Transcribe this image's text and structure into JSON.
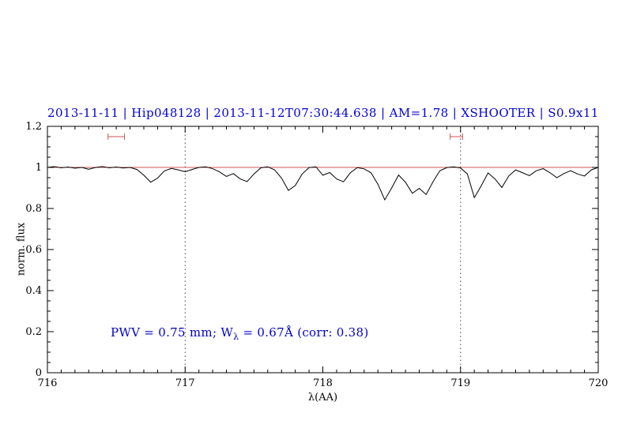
{
  "title": {
    "text": "2013-11-11 | Hip048128 | 2013-11-12T07:30:44.638 | AM=1.78 | XSHOOTER | S0.9x11",
    "color": "#0000dd"
  },
  "annotation": {
    "pre": "PWV = 0.75 mm; W",
    "sub": "λ",
    "post": " = 0.67Å (corr: 0.38)",
    "color": "#0000cc"
  },
  "chart_data": {
    "type": "line",
    "title": "2013-11-11 | Hip048128 | 2013-11-12T07:30:44.638 | AM=1.78 | XSHOOTER | S0.9x11",
    "xlabel": "λ(AA)",
    "ylabel": "norm. flux",
    "xlim": [
      716,
      720
    ],
    "ylim": [
      0,
      1.2
    ],
    "grid": false,
    "xticks": [
      716,
      717,
      718,
      719,
      720
    ],
    "xtick_labels": [
      "716",
      "717",
      "718",
      "719",
      "720"
    ],
    "x_minor_step": 0.1,
    "yticks": [
      0,
      0.2,
      0.4,
      0.6,
      0.8,
      1,
      1.2
    ],
    "ytick_labels": [
      "0",
      "0.2",
      "0.4",
      "0.6",
      "0.8",
      "1",
      "1.2"
    ],
    "y_minor_step": 0.05,
    "vlines": {
      "x": [
        717,
        719
      ],
      "style": "dotted",
      "color": "#444444"
    },
    "reference_line": {
      "y": 1.0,
      "color": "#cc5555"
    },
    "interval_markers": [
      {
        "x_center": 716.5,
        "half_width": 0.06,
        "y": 1.15,
        "color": "#cc5555"
      },
      {
        "x_center": 718.97,
        "half_width": 0.045,
        "y": 1.15,
        "color": "#cc5555"
      }
    ],
    "series": [
      {
        "name": "spectrum",
        "color": "#000000",
        "points": [
          [
            716.0,
            1.0
          ],
          [
            716.05,
            1.004
          ],
          [
            716.1,
            0.998
          ],
          [
            716.15,
            1.002
          ],
          [
            716.2,
            0.996
          ],
          [
            716.25,
            1.0
          ],
          [
            716.3,
            0.991
          ],
          [
            716.35,
            1.0
          ],
          [
            716.4,
            1.004
          ],
          [
            716.45,
            0.998
          ],
          [
            716.5,
            1.002
          ],
          [
            716.55,
            0.997
          ],
          [
            716.6,
            1.0
          ],
          [
            716.65,
            0.99
          ],
          [
            716.7,
            0.962
          ],
          [
            716.75,
            0.928
          ],
          [
            716.8,
            0.948
          ],
          [
            716.85,
            0.983
          ],
          [
            716.9,
            0.995
          ],
          [
            716.95,
            0.988
          ],
          [
            717.0,
            0.979
          ],
          [
            717.05,
            0.99
          ],
          [
            717.1,
            1.0
          ],
          [
            717.15,
            1.003
          ],
          [
            717.2,
            0.994
          ],
          [
            717.25,
            0.978
          ],
          [
            717.3,
            0.956
          ],
          [
            717.35,
            0.97
          ],
          [
            717.4,
            0.944
          ],
          [
            717.45,
            0.931
          ],
          [
            717.5,
            0.968
          ],
          [
            717.55,
            0.998
          ],
          [
            717.6,
            1.003
          ],
          [
            717.65,
            0.988
          ],
          [
            717.7,
            0.948
          ],
          [
            717.75,
            0.888
          ],
          [
            717.8,
            0.912
          ],
          [
            717.85,
            0.968
          ],
          [
            717.9,
            0.999
          ],
          [
            717.95,
            1.003
          ],
          [
            718.0,
            0.962
          ],
          [
            718.05,
            0.975
          ],
          [
            718.1,
            0.944
          ],
          [
            718.15,
            0.93
          ],
          [
            718.2,
            0.974
          ],
          [
            718.25,
            0.999
          ],
          [
            718.3,
            0.993
          ],
          [
            718.35,
            0.974
          ],
          [
            718.4,
            0.918
          ],
          [
            718.45,
            0.842
          ],
          [
            718.5,
            0.9
          ],
          [
            718.55,
            0.963
          ],
          [
            718.6,
            0.928
          ],
          [
            718.65,
            0.874
          ],
          [
            718.7,
            0.898
          ],
          [
            718.75,
            0.868
          ],
          [
            718.8,
            0.93
          ],
          [
            718.85,
            0.984
          ],
          [
            718.9,
            0.999
          ],
          [
            718.95,
            1.003
          ],
          [
            719.0,
            0.997
          ],
          [
            719.05,
            0.968
          ],
          [
            719.1,
            0.853
          ],
          [
            719.15,
            0.91
          ],
          [
            719.2,
            0.973
          ],
          [
            719.25,
            0.944
          ],
          [
            719.3,
            0.902
          ],
          [
            719.35,
            0.958
          ],
          [
            719.4,
            0.988
          ],
          [
            719.45,
            0.974
          ],
          [
            719.5,
            0.96
          ],
          [
            719.55,
            0.984
          ],
          [
            719.6,
            0.994
          ],
          [
            719.65,
            0.974
          ],
          [
            719.7,
            0.95
          ],
          [
            719.75,
            0.97
          ],
          [
            719.8,
            0.984
          ],
          [
            719.85,
            0.968
          ],
          [
            719.9,
            0.958
          ],
          [
            719.95,
            0.988
          ],
          [
            720.0,
            1.0
          ]
        ]
      }
    ]
  }
}
